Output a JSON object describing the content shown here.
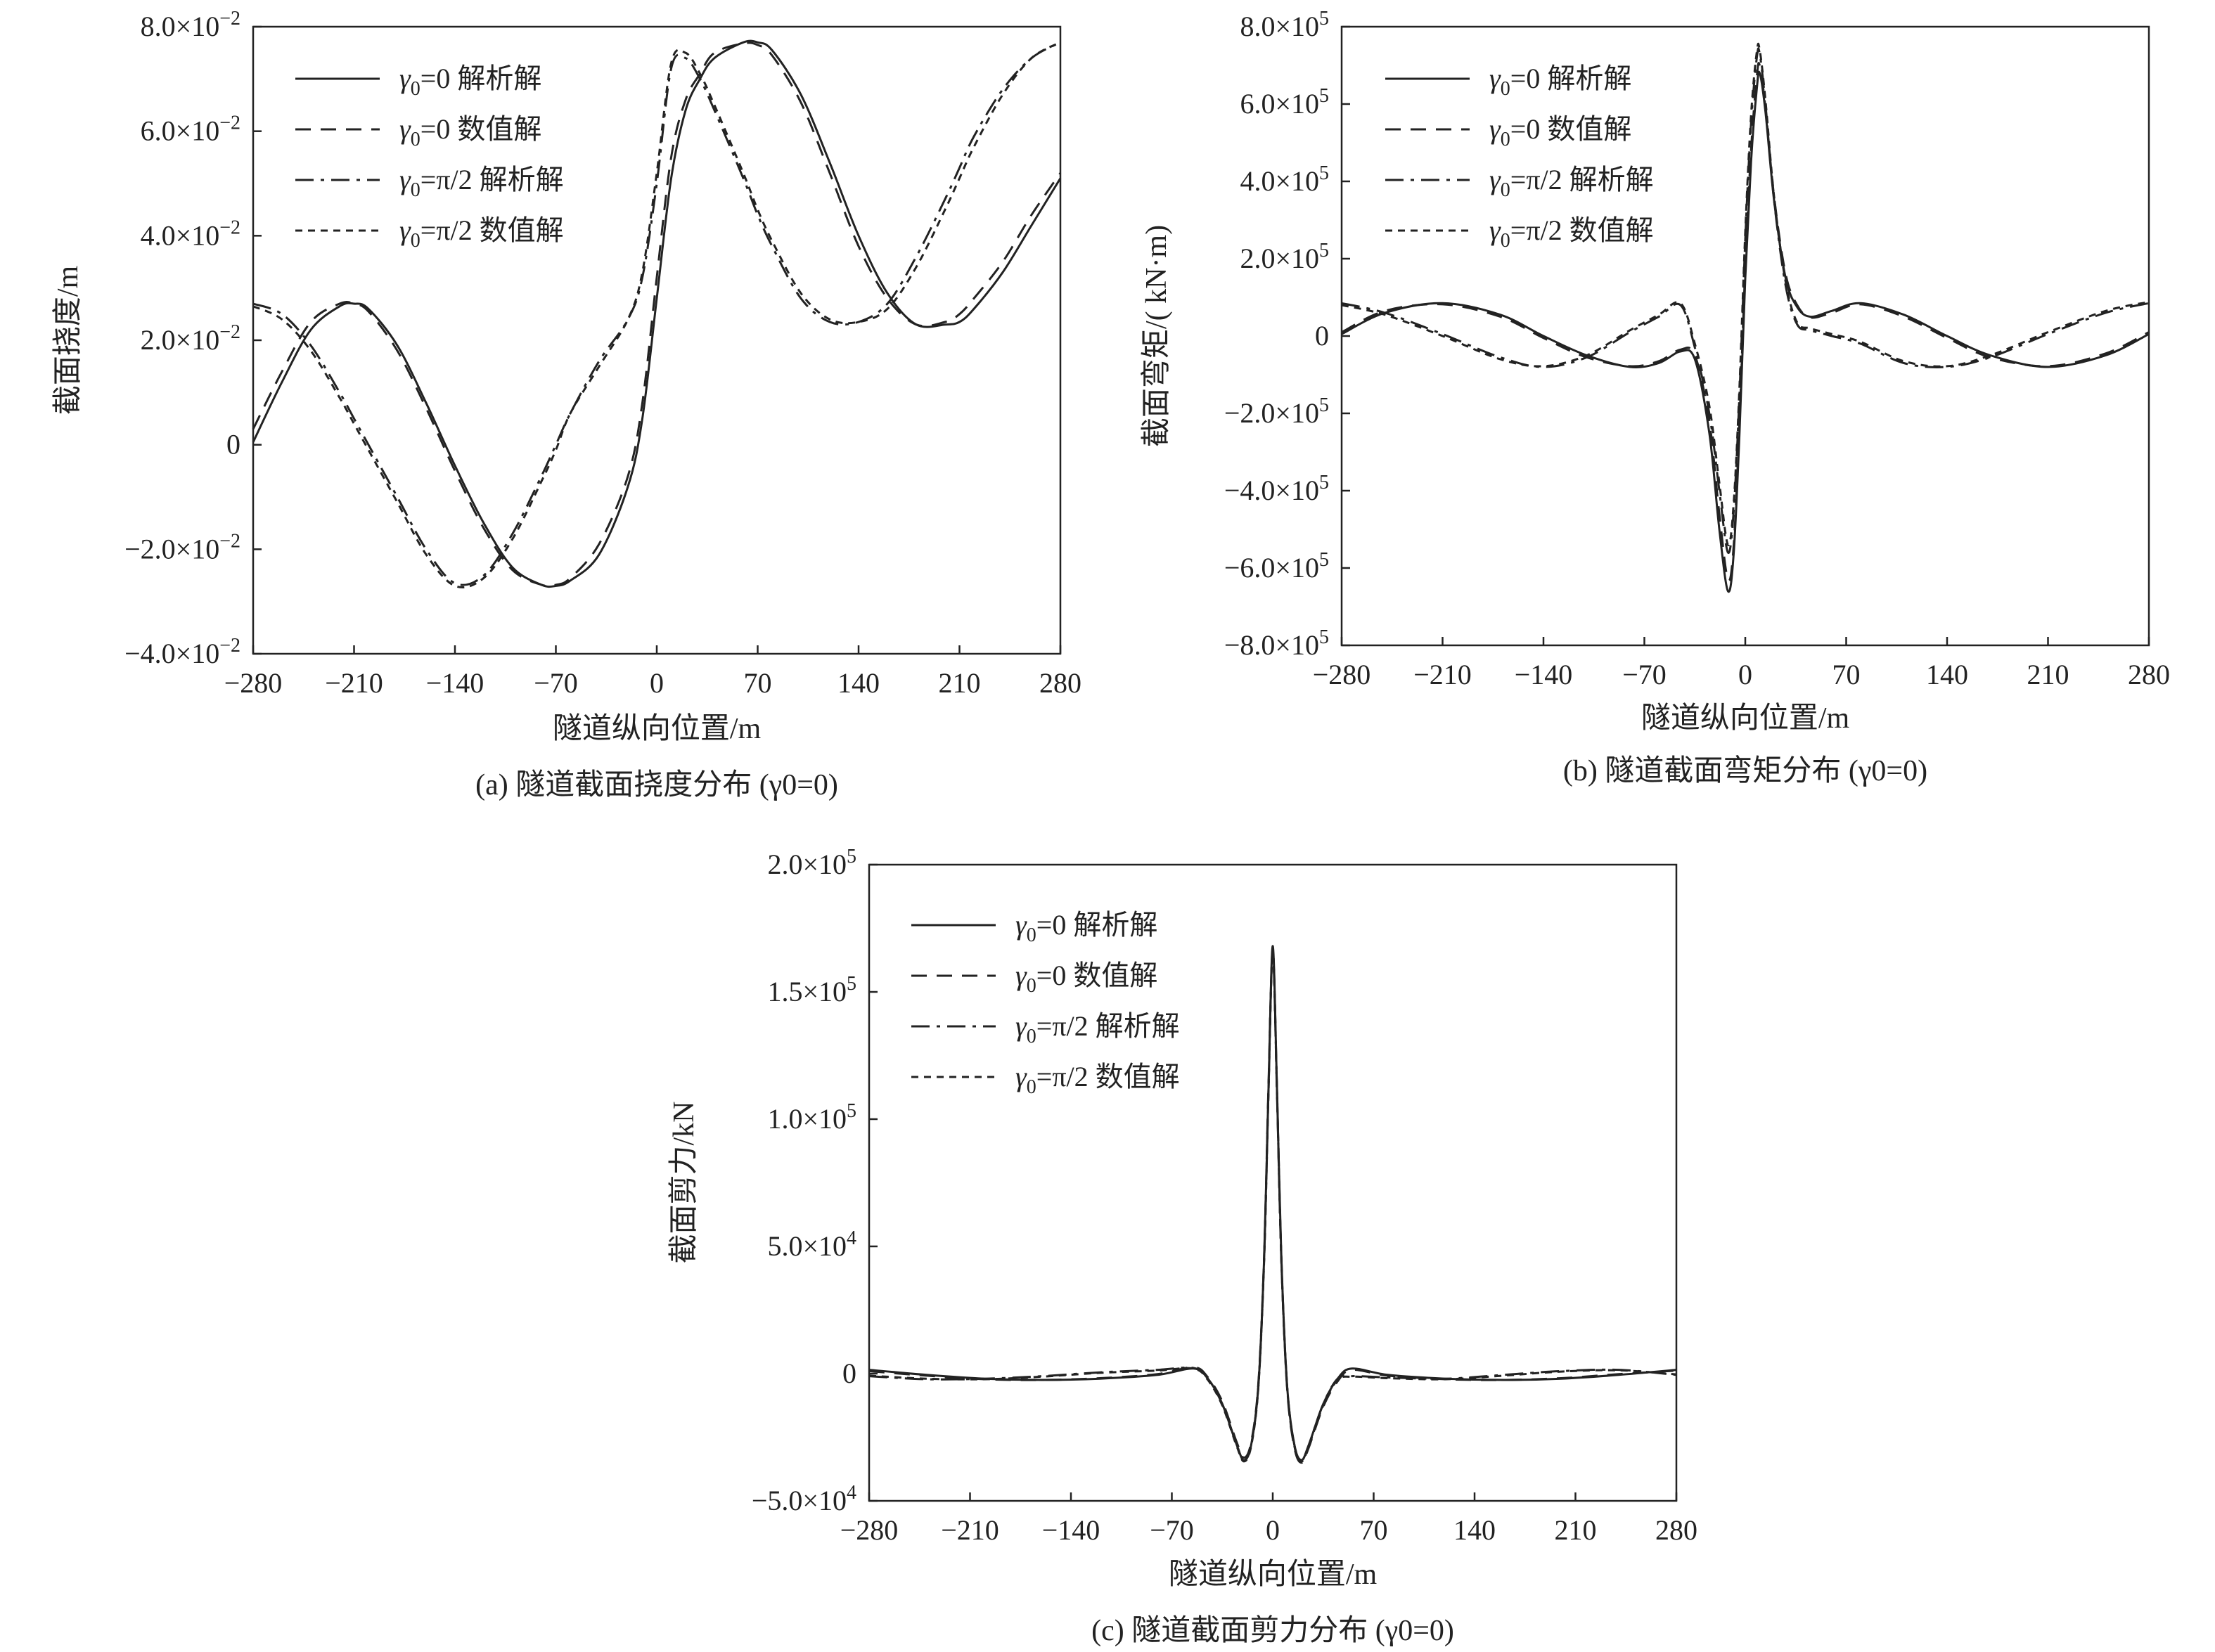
{
  "legend": [
    {
      "id": "a0",
      "gamma_text": "=0",
      "label": "解析解",
      "dash": ""
    },
    {
      "id": "n0",
      "gamma_text": "=0",
      "label": "数值解",
      "dash": "22,14"
    },
    {
      "id": "apm",
      "gamma_text": "=π/2",
      "label": "解析解",
      "dash": "26,10,5,10"
    },
    {
      "id": "npm",
      "gamma_text": "=π/2",
      "label": "数值解",
      "dash": "10,8"
    }
  ],
  "chart_data": [
    {
      "id": "a",
      "type": "line",
      "caption": "(a) 隧道截面挠度分布 (γ0=0)",
      "xlabel": "隧道纵向位置/m",
      "ylabel": "截面挠度/m",
      "xlim": [
        -280,
        280
      ],
      "ylim": [
        -0.04,
        0.08
      ],
      "xticks": [
        "−280",
        "−210",
        "−140",
        "−70",
        "0",
        "70",
        "140",
        "210",
        "280"
      ],
      "yticks": [
        {
          "value": 0.08,
          "mant": "8.0×10",
          "exp": "−2"
        },
        {
          "value": 0.06,
          "mant": "6.0×10",
          "exp": "−2"
        },
        {
          "value": 0.04,
          "mant": "4.0×10",
          "exp": "−2"
        },
        {
          "value": 0.02,
          "mant": "2.0×10",
          "exp": "−2"
        },
        {
          "value": 0,
          "mant": "0",
          "exp": ""
        },
        {
          "value": -0.02,
          "mant": "−2.0×10",
          "exp": "−2"
        },
        {
          "value": -0.04,
          "mant": "−4.0×10",
          "exp": "−2"
        }
      ],
      "x": [
        -280,
        -260,
        -240,
        -220,
        -210,
        -200,
        -180,
        -160,
        -140,
        -120,
        -100,
        -80,
        -70,
        -60,
        -40,
        -20,
        -10,
        0,
        10,
        20,
        30,
        40,
        60,
        70,
        80,
        100,
        120,
        140,
        160,
        180,
        200,
        210,
        220,
        240,
        260,
        280
      ],
      "series": [
        {
          "ref": "a0",
          "values": [
            0.0005,
            0.012,
            0.022,
            0.0265,
            0.027,
            0.026,
            0.019,
            0.008,
            -0.004,
            -0.015,
            -0.0235,
            -0.0268,
            -0.027,
            -0.026,
            -0.021,
            -0.008,
            0.005,
            0.028,
            0.051,
            0.064,
            0.07,
            0.074,
            0.077,
            0.077,
            0.0755,
            0.067,
            0.054,
            0.04,
            0.029,
            0.023,
            0.023,
            0.0235,
            0.026,
            0.033,
            0.042,
            0.051
          ]
        },
        {
          "ref": "n0",
          "values": [
            0.003,
            0.014,
            0.0235,
            0.027,
            0.027,
            0.0255,
            0.018,
            0.007,
            -0.005,
            -0.016,
            -0.024,
            -0.0268,
            -0.0268,
            -0.0255,
            -0.019,
            -0.006,
            0.008,
            0.032,
            0.055,
            0.066,
            0.071,
            0.075,
            0.0768,
            0.0765,
            0.0745,
            0.0655,
            0.052,
            0.038,
            0.028,
            0.023,
            0.0235,
            0.025,
            0.028,
            0.035,
            0.044,
            0.052
          ]
        },
        {
          "ref": "apm",
          "values": [
            0.027,
            0.025,
            0.019,
            0.01,
            0.005,
            0.0,
            -0.01,
            -0.02,
            -0.0265,
            -0.025,
            -0.017,
            -0.006,
            0.0,
            0.006,
            0.016,
            0.024,
            0.032,
            0.05,
            0.072,
            0.074,
            0.07,
            0.064,
            0.051,
            0.044,
            0.038,
            0.028,
            0.0235,
            0.0235,
            0.027,
            0.036,
            0.047,
            0.053,
            0.059,
            0.068,
            0.074,
            0.077
          ]
        },
        {
          "ref": "npm",
          "values": [
            0.0265,
            0.024,
            0.018,
            0.009,
            0.004,
            -0.001,
            -0.011,
            -0.021,
            -0.027,
            -0.0255,
            -0.018,
            -0.007,
            -0.001,
            0.006,
            0.015,
            0.024,
            0.033,
            0.052,
            0.073,
            0.075,
            0.071,
            0.065,
            0.052,
            0.045,
            0.039,
            0.029,
            0.024,
            0.0235,
            0.026,
            0.034,
            0.045,
            0.051,
            0.057,
            0.067,
            0.074,
            0.077
          ]
        }
      ]
    },
    {
      "id": "b",
      "type": "line",
      "caption": "(b) 隧道截面弯矩分布 (γ0=0)",
      "xlabel": "隧道纵向位置/m",
      "ylabel": "截面弯矩/( kN·m)",
      "xlim": [
        -280,
        280
      ],
      "ylim": [
        -800000,
        800000
      ],
      "xticks": [
        "−280",
        "−210",
        "−140",
        "−70",
        "0",
        "70",
        "140",
        "210",
        "280"
      ],
      "yticks": [
        {
          "value": 800000,
          "mant": "8.0×10",
          "exp": "5"
        },
        {
          "value": 600000,
          "mant": "6.0×10",
          "exp": "5"
        },
        {
          "value": 400000,
          "mant": "4.0×10",
          "exp": "5"
        },
        {
          "value": 200000,
          "mant": "2.0×10",
          "exp": "5"
        },
        {
          "value": 0,
          "mant": "0",
          "exp": ""
        },
        {
          "value": -200000,
          "mant": "−2.0×10",
          "exp": "5"
        },
        {
          "value": -400000,
          "mant": "−4.0×10",
          "exp": "5"
        },
        {
          "value": -600000,
          "mant": "−6.0×10",
          "exp": "5"
        },
        {
          "value": -800000,
          "mant": "−8.0×10",
          "exp": "5"
        }
      ],
      "x": [
        -280,
        -250,
        -210,
        -170,
        -140,
        -110,
        -80,
        -60,
        -45,
        -35,
        -25,
        -18,
        -12,
        -8,
        -4,
        0,
        4,
        8,
        10,
        14,
        20,
        28,
        36,
        45,
        60,
        80,
        110,
        140,
        170,
        210,
        250,
        280
      ],
      "series": [
        {
          "ref": "a0",
          "values": [
            5000,
            60000,
            85000,
            55000,
            0,
            -50000,
            -80000,
            -70000,
            -40000,
            -60000,
            -250000,
            -500000,
            -660000,
            -560000,
            -250000,
            150000,
            450000,
            640000,
            680000,
            580000,
            350000,
            150000,
            75000,
            50000,
            65000,
            85000,
            55000,
            0,
            -50000,
            -80000,
            -50000,
            5000
          ]
        },
        {
          "ref": "n0",
          "values": [
            10000,
            65000,
            82000,
            50000,
            -5000,
            -55000,
            -78000,
            -65000,
            -35000,
            -50000,
            -220000,
            -460000,
            -630000,
            -540000,
            -220000,
            180000,
            480000,
            670000,
            700000,
            590000,
            360000,
            160000,
            80000,
            48000,
            60000,
            82000,
            50000,
            -5000,
            -55000,
            -78000,
            -45000,
            10000
          ]
        },
        {
          "ref": "apm",
          "values": [
            85000,
            60000,
            5000,
            -55000,
            -80000,
            -55000,
            10000,
            50000,
            80000,
            -30000,
            -200000,
            -400000,
            -560000,
            -450000,
            -150000,
            250000,
            550000,
            720000,
            730000,
            600000,
            350000,
            130000,
            30000,
            15000,
            0,
            -20000,
            -70000,
            -80000,
            -55000,
            5000,
            60000,
            85000
          ]
        },
        {
          "ref": "npm",
          "values": [
            80000,
            55000,
            0,
            -60000,
            -78000,
            -50000,
            15000,
            55000,
            85000,
            -20000,
            -180000,
            -380000,
            -540000,
            -430000,
            -130000,
            270000,
            570000,
            735000,
            740000,
            610000,
            360000,
            140000,
            35000,
            20000,
            5000,
            -15000,
            -65000,
            -78000,
            -50000,
            10000,
            65000,
            88000
          ]
        }
      ]
    },
    {
      "id": "c",
      "type": "line",
      "caption": "(c) 隧道截面剪力分布 (γ0=0)",
      "xlabel": "隧道纵向位置/m",
      "ylabel": "截面剪力/kN",
      "xlim": [
        -280,
        280
      ],
      "ylim": [
        -50000,
        200000
      ],
      "xticks": [
        "−280",
        "−210",
        "−140",
        "−70",
        "0",
        "70",
        "140",
        "210",
        "280"
      ],
      "yticks": [
        {
          "value": 200000,
          "mant": "2.0×10",
          "exp": "5"
        },
        {
          "value": 150000,
          "mant": "1.5×10",
          "exp": "5"
        },
        {
          "value": 100000,
          "mant": "1.0×10",
          "exp": "5"
        },
        {
          "value": 50000,
          "mant": "5.0×10",
          "exp": "4"
        },
        {
          "value": 0,
          "mant": "0",
          "exp": ""
        },
        {
          "value": -50000,
          "mant": "−5.0×10",
          "exp": "4"
        }
      ],
      "x": [
        -280,
        -240,
        -200,
        -160,
        -120,
        -80,
        -55,
        -45,
        -35,
        -25,
        -20,
        -15,
        -10,
        -6,
        -3,
        0,
        3,
        6,
        10,
        15,
        20,
        25,
        35,
        45,
        55,
        80,
        120,
        160,
        200,
        240,
        280
      ],
      "series": [
        {
          "ref": "a0",
          "values": [
            1500,
            -500,
            -2000,
            -2500,
            -2000,
            -500,
            2000,
            -2000,
            -12000,
            -28000,
            -34000,
            -28000,
            -5000,
            45000,
            110000,
            168000,
            110000,
            45000,
            -5000,
            -28000,
            -34000,
            -28000,
            -12000,
            -2000,
            2000,
            -500,
            -2000,
            -2500,
            -2000,
            -500,
            1500
          ]
        },
        {
          "ref": "n0",
          "values": [
            1000,
            -800,
            -2200,
            -2500,
            -1800,
            -200,
            2500,
            -1500,
            -11000,
            -27000,
            -33000,
            -27000,
            -4000,
            46000,
            112000,
            166000,
            108000,
            44000,
            -6000,
            -29000,
            -35000,
            -29000,
            -13000,
            -3000,
            1500,
            -800,
            -2200,
            -2500,
            -1800,
            -200,
            1200
          ]
        },
        {
          "ref": "apm",
          "values": [
            -1000,
            -2200,
            -2000,
            -1000,
            500,
            1500,
            2200,
            -2000,
            -12000,
            -28000,
            -34000,
            -28000,
            -5000,
            45000,
            110000,
            167000,
            110000,
            45000,
            -5000,
            -28000,
            -34000,
            -28000,
            -12000,
            -2000,
            -1000,
            -1500,
            -2000,
            -500,
            1000,
            1500,
            -500
          ]
        },
        {
          "ref": "npm",
          "values": [
            -800,
            -2000,
            -2200,
            -1200,
            300,
            1200,
            2000,
            -2500,
            -12500,
            -28500,
            -34500,
            -28500,
            -5500,
            44000,
            109000,
            166000,
            109000,
            44000,
            -5500,
            -28500,
            -34500,
            -28500,
            -12500,
            -2500,
            -1200,
            -1800,
            -2200,
            -800,
            800,
            1300,
            -300
          ]
        }
      ]
    }
  ]
}
